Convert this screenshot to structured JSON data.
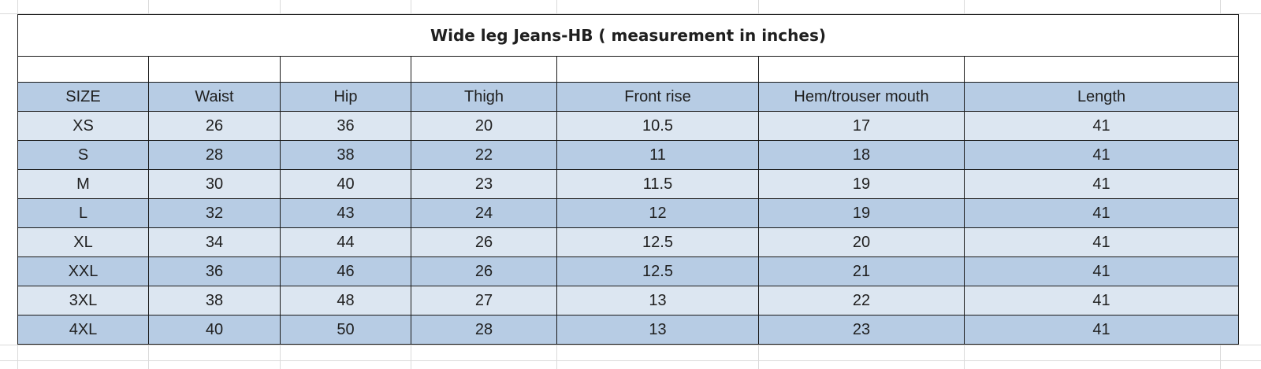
{
  "table": {
    "title": "Wide leg Jeans-HB ( measurement in inches)",
    "headers": [
      "SIZE",
      "Waist",
      "Hip",
      "Thigh",
      "Front rise",
      "Hem/trouser mouth",
      "Length"
    ],
    "rows": [
      {
        "size": "XS",
        "waist": "26",
        "hip": "36",
        "thigh": "20",
        "front_rise": "10.5",
        "hem": "17",
        "length": "41"
      },
      {
        "size": "S",
        "waist": "28",
        "hip": "38",
        "thigh": "22",
        "front_rise": "11",
        "hem": "18",
        "length": "41"
      },
      {
        "size": "M",
        "waist": "30",
        "hip": "40",
        "thigh": "23",
        "front_rise": "11.5",
        "hem": "19",
        "length": "41"
      },
      {
        "size": "L",
        "waist": "32",
        "hip": "43",
        "thigh": "24",
        "front_rise": "12",
        "hem": "19",
        "length": "41"
      },
      {
        "size": "XL",
        "waist": "34",
        "hip": "44",
        "thigh": "26",
        "front_rise": "12.5",
        "hem": "20",
        "length": "41"
      },
      {
        "size": "XXL",
        "waist": "36",
        "hip": "46",
        "thigh": "26",
        "front_rise": "12.5",
        "hem": "21",
        "length": "41"
      },
      {
        "size": "3XL",
        "waist": "38",
        "hip": "48",
        "thigh": "27",
        "front_rise": "13",
        "hem": "22",
        "length": "41"
      },
      {
        "size": "4XL",
        "waist": "40",
        "hip": "50",
        "thigh": "28",
        "front_rise": "13",
        "hem": "23",
        "length": "41"
      }
    ]
  },
  "colors": {
    "header_fill": "#b7cce4",
    "band_dark": "#b7cce4",
    "band_light": "#dce6f1",
    "border": "#1a1a1a",
    "gridline": "#dadada"
  }
}
